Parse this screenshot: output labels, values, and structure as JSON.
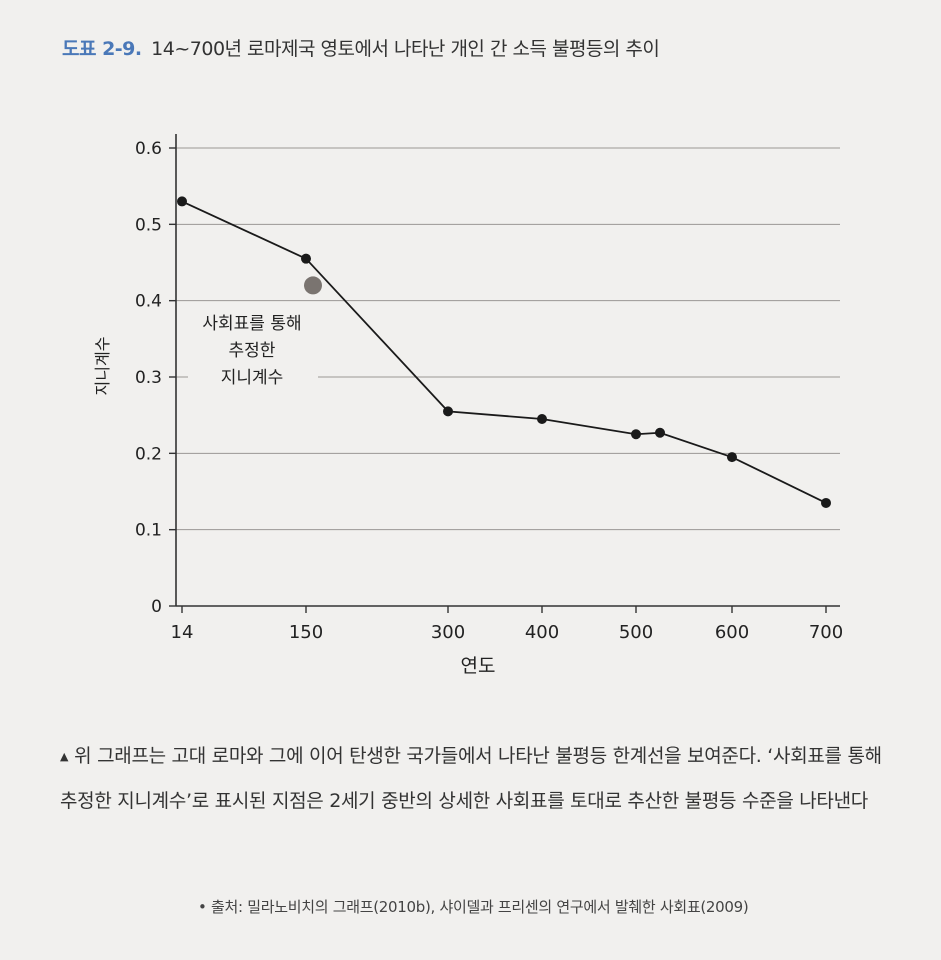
{
  "figure": {
    "number": "도표 2-9.",
    "title": "14~700년 로마제국 영토에서 나타난 개인 간 소득 불평등의 추이"
  },
  "chart_data": {
    "type": "line",
    "xlabel": "연도",
    "ylabel": "지니계수",
    "ylim": [
      0,
      0.6
    ],
    "yticks": [
      0,
      0.1,
      0.2,
      0.3,
      0.4,
      0.5,
      0.6
    ],
    "ytick_labels": [
      "0",
      "0.1",
      "0.2",
      "0.3",
      "0.4",
      "0.5",
      "0.6"
    ],
    "xticks": [
      14,
      150,
      300,
      400,
      500,
      600,
      700
    ],
    "xtick_labels": [
      "14",
      "150",
      "300",
      "400",
      "500",
      "600",
      "700"
    ],
    "grid": true,
    "series": [
      {
        "x": [
          14,
          150,
          300,
          400,
          500,
          525,
          600,
          700
        ],
        "values": [
          0.53,
          0.455,
          0.255,
          0.245,
          0.225,
          0.227,
          0.195,
          0.135
        ],
        "color": "#1a1a1a"
      }
    ],
    "highlight_point": {
      "x": 150,
      "value": 0.42,
      "color": "#7a7470"
    },
    "annotation": [
      "사회표를 통해",
      "추정한",
      "지니계수"
    ]
  },
  "caption": "위 그래프는 고대 로마와 그에 이어 탄생한 국가들에서 나타난 불평등 한계선을 보여준다. ‘사회표를 통해 추정한 지니계수’로 표시된 지점은 2세기 중반의 상세한 사회표를 토대로 추산한 불평등 수준을 나타낸다",
  "source": "• 출처: 밀라노비치의 그래프(2010b), 샤이델과 프리센의 연구에서 발췌한 사회표(2009)"
}
